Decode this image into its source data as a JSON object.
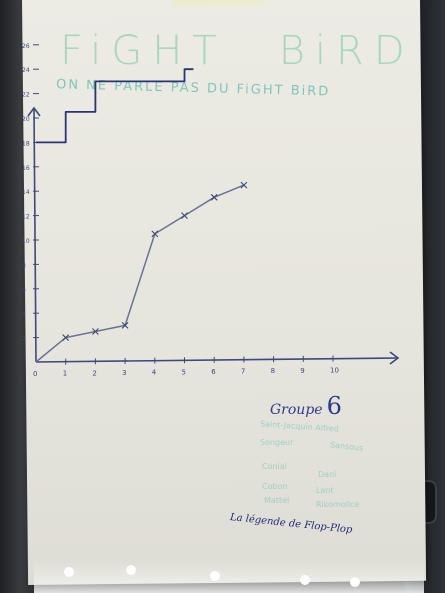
{
  "photo": {
    "subject": "flipchart",
    "title_word_1": "FiGHT",
    "title_word_2": "BiRD",
    "subtitle": "ON NE PARLE PAS DU FiGHT BiRD",
    "group_label": "Groupe",
    "group_number": "6",
    "members": [
      "Saint-Jacquin Alfred",
      "Songeur",
      "Sansous",
      "Conial",
      "Dani",
      "Cobon",
      "Lant",
      "Mattel",
      "Rikomolice"
    ],
    "legend": "La légende de Flop-Plop",
    "colors": {
      "paper": "#e8e7e0",
      "title_green": "#a9d7bd",
      "ink_blue": "#2c3c8c",
      "chart_line": "#3c4a7a",
      "frame": "#2b2d31"
    }
  },
  "chart_data": {
    "type": "line",
    "x_ticks": [
      "0",
      "1",
      "2",
      "3",
      "4",
      "5",
      "6",
      "7",
      "8",
      "9",
      "10"
    ],
    "y_ticks": [
      "2",
      "4",
      "6",
      "8",
      "10",
      "12",
      "14",
      "16",
      "18",
      "20",
      "22",
      "24",
      "26"
    ],
    "xlim": [
      0,
      11
    ],
    "ylim": [
      0,
      27
    ],
    "series": [
      {
        "name": "upper step line",
        "style": "step",
        "x": [
          0,
          1,
          1,
          2,
          2,
          5,
          5,
          5.3
        ],
        "y": [
          18,
          18,
          20.5,
          20.5,
          23,
          23,
          24,
          24
        ]
      },
      {
        "name": "lower line with markers",
        "style": "line",
        "x": [
          0,
          1,
          2,
          3,
          4,
          5,
          6,
          7
        ],
        "y": [
          0,
          2,
          2.5,
          3,
          10.5,
          12,
          13.5,
          14.5
        ]
      }
    ]
  }
}
